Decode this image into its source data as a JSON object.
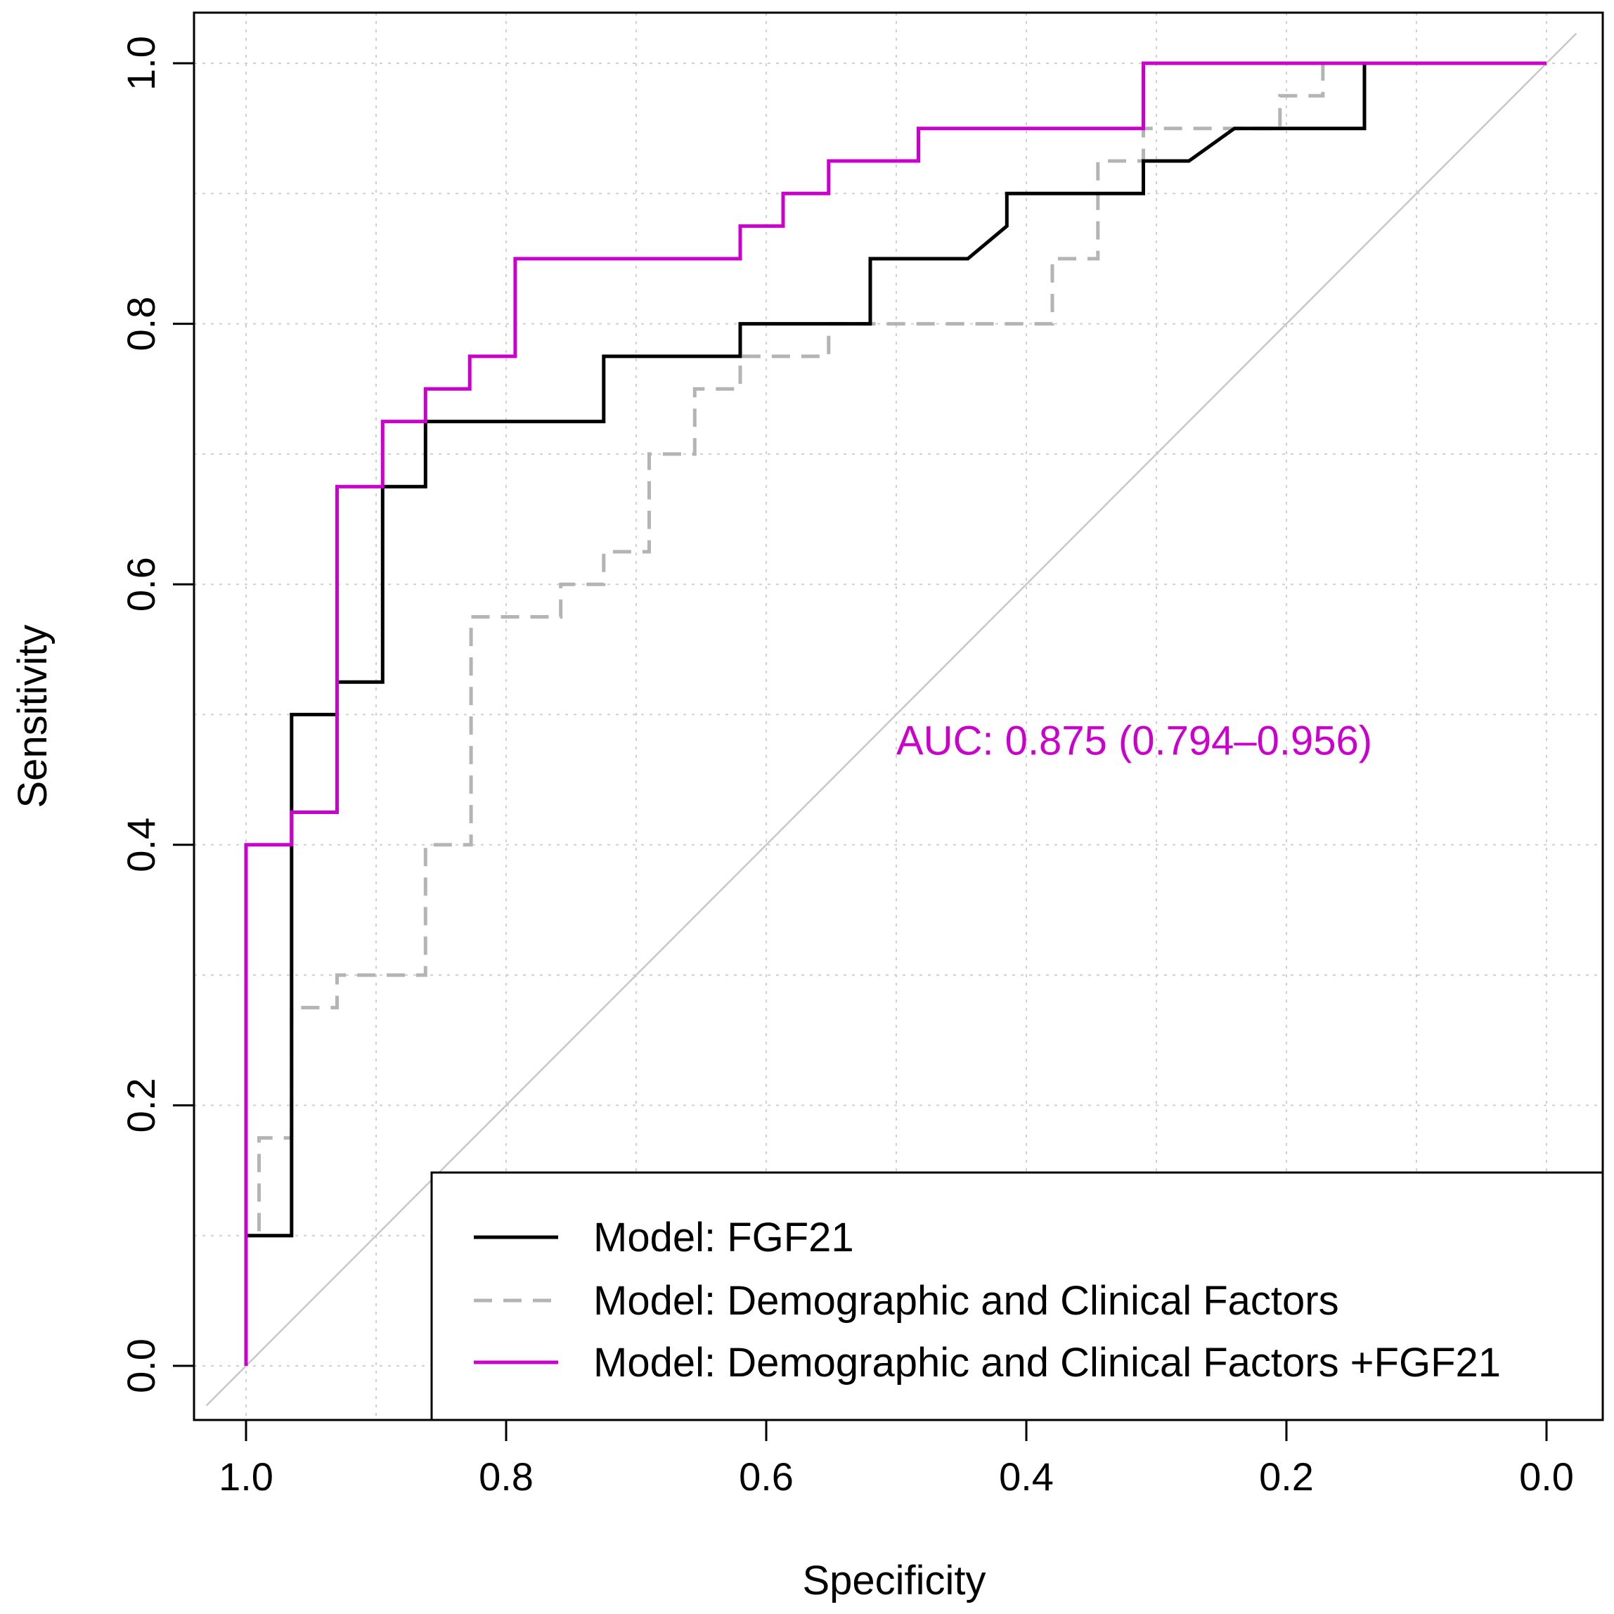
{
  "chart_data": {
    "type": "line",
    "title": "",
    "xlabel": "Specificity",
    "ylabel": "Sensitivity",
    "xlim": [
      1.0,
      0.0
    ],
    "ylim": [
      0.0,
      1.0
    ],
    "x_reversed": true,
    "grid": true,
    "x_ticks": [
      "1.0",
      "0.8",
      "0.6",
      "0.4",
      "0.2",
      "0.0"
    ],
    "y_ticks": [
      "0.0",
      "0.2",
      "0.4",
      "0.6",
      "0.8",
      "1.0"
    ],
    "legend_position": "bottom-right",
    "reference_line": {
      "from": [
        1.0,
        0.0
      ],
      "to": [
        0.0,
        1.0
      ],
      "color": "#c8c8c8"
    },
    "annotation": {
      "text": "AUC: 0.875 (0.794–0.956)",
      "x": 0.5,
      "y": 0.48,
      "color": "#cc00cc"
    },
    "series": [
      {
        "name": "Model: FGF21",
        "color": "#000000",
        "dash": "solid",
        "points": [
          [
            1.0,
            0.0
          ],
          [
            1.0,
            0.1
          ],
          [
            0.965,
            0.1
          ],
          [
            0.965,
            0.5
          ],
          [
            0.93,
            0.5
          ],
          [
            0.93,
            0.525
          ],
          [
            0.895,
            0.525
          ],
          [
            0.895,
            0.675
          ],
          [
            0.862,
            0.675
          ],
          [
            0.862,
            0.725
          ],
          [
            0.725,
            0.725
          ],
          [
            0.725,
            0.775
          ],
          [
            0.62,
            0.775
          ],
          [
            0.62,
            0.8
          ],
          [
            0.52,
            0.8
          ],
          [
            0.52,
            0.85
          ],
          [
            0.445,
            0.85
          ],
          [
            0.415,
            0.875
          ],
          [
            0.415,
            0.9
          ],
          [
            0.31,
            0.9
          ],
          [
            0.31,
            0.925
          ],
          [
            0.275,
            0.925
          ],
          [
            0.24,
            0.95
          ],
          [
            0.14,
            0.95
          ],
          [
            0.14,
            1.0
          ],
          [
            0.0,
            1.0
          ]
        ]
      },
      {
        "name": "Model: Demographic and Clinical Factors",
        "color": "#b4b4b4",
        "dash": "dashed",
        "points": [
          [
            1.0,
            0.0
          ],
          [
            1.0,
            0.1
          ],
          [
            0.99,
            0.1
          ],
          [
            0.99,
            0.175
          ],
          [
            0.965,
            0.175
          ],
          [
            0.965,
            0.275
          ],
          [
            0.93,
            0.275
          ],
          [
            0.93,
            0.3
          ],
          [
            0.862,
            0.3
          ],
          [
            0.862,
            0.4
          ],
          [
            0.827,
            0.4
          ],
          [
            0.827,
            0.575
          ],
          [
            0.758,
            0.575
          ],
          [
            0.758,
            0.6
          ],
          [
            0.725,
            0.6
          ],
          [
            0.725,
            0.625
          ],
          [
            0.69,
            0.625
          ],
          [
            0.69,
            0.7
          ],
          [
            0.655,
            0.7
          ],
          [
            0.655,
            0.75
          ],
          [
            0.62,
            0.75
          ],
          [
            0.62,
            0.775
          ],
          [
            0.552,
            0.775
          ],
          [
            0.552,
            0.8
          ],
          [
            0.38,
            0.8
          ],
          [
            0.38,
            0.85
          ],
          [
            0.345,
            0.85
          ],
          [
            0.345,
            0.925
          ],
          [
            0.31,
            0.925
          ],
          [
            0.31,
            0.95
          ],
          [
            0.205,
            0.95
          ],
          [
            0.205,
            0.975
          ],
          [
            0.172,
            0.975
          ],
          [
            0.172,
            1.0
          ],
          [
            0.0,
            1.0
          ]
        ]
      },
      {
        "name": "Model: Demographic and Clinical Factors +FGF21",
        "color": "#cc00cc",
        "dash": "solid",
        "points": [
          [
            1.0,
            0.0
          ],
          [
            1.0,
            0.4
          ],
          [
            0.965,
            0.4
          ],
          [
            0.965,
            0.425
          ],
          [
            0.93,
            0.425
          ],
          [
            0.93,
            0.675
          ],
          [
            0.895,
            0.675
          ],
          [
            0.895,
            0.725
          ],
          [
            0.862,
            0.725
          ],
          [
            0.862,
            0.75
          ],
          [
            0.828,
            0.75
          ],
          [
            0.828,
            0.775
          ],
          [
            0.793,
            0.775
          ],
          [
            0.793,
            0.85
          ],
          [
            0.62,
            0.85
          ],
          [
            0.62,
            0.875
          ],
          [
            0.587,
            0.875
          ],
          [
            0.587,
            0.9
          ],
          [
            0.552,
            0.9
          ],
          [
            0.552,
            0.925
          ],
          [
            0.483,
            0.925
          ],
          [
            0.483,
            0.95
          ],
          [
            0.31,
            0.95
          ],
          [
            0.31,
            1.0
          ],
          [
            0.0,
            1.0
          ]
        ]
      }
    ]
  }
}
